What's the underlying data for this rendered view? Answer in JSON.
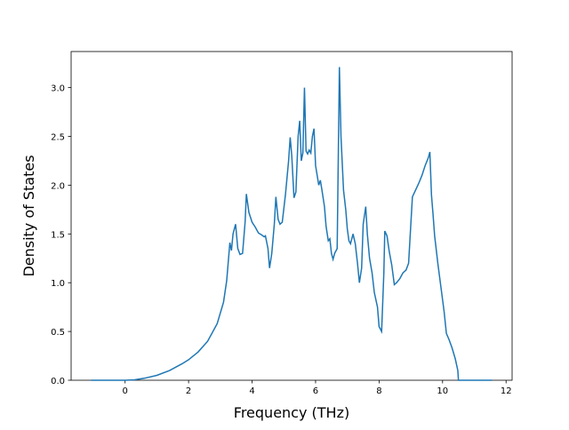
{
  "chart_data": {
    "type": "line",
    "xlabel": "Frequency (THz)",
    "ylabel": "Density of States",
    "x": [
      -1.07,
      -0.5,
      0,
      0.3,
      0.6,
      1.0,
      1.4,
      1.8,
      2.0,
      2.3,
      2.6,
      2.9,
      3.1,
      3.2,
      3.3,
      3.35,
      3.4,
      3.48,
      3.55,
      3.62,
      3.7,
      3.78,
      3.82,
      3.9,
      4.0,
      4.1,
      4.2,
      4.3,
      4.38,
      4.42,
      4.5,
      4.55,
      4.62,
      4.7,
      4.75,
      4.82,
      4.88,
      4.95,
      5.05,
      5.15,
      5.2,
      5.25,
      5.32,
      5.38,
      5.45,
      5.5,
      5.55,
      5.6,
      5.65,
      5.7,
      5.75,
      5.8,
      5.85,
      5.9,
      5.95,
      6.0,
      6.1,
      6.15,
      6.2,
      6.28,
      6.33,
      6.4,
      6.45,
      6.5,
      6.55,
      6.6,
      6.68,
      6.75,
      6.8,
      6.88,
      6.95,
      7.0,
      7.05,
      7.1,
      7.18,
      7.25,
      7.32,
      7.38,
      7.45,
      7.5,
      7.58,
      7.63,
      7.7,
      7.78,
      7.85,
      7.95,
      8.0,
      8.08,
      8.15,
      8.18,
      8.25,
      8.32,
      8.4,
      8.48,
      8.55,
      8.65,
      8.75,
      8.85,
      8.93,
      9.0,
      9.05,
      9.15,
      9.25,
      9.35,
      9.45,
      9.55,
      9.6,
      9.65,
      9.7,
      9.75,
      9.85,
      9.95,
      10.05,
      10.12,
      10.2,
      10.3,
      10.4,
      10.48,
      10.5,
      11.0,
      11.56
    ],
    "series": [
      {
        "name": "DOS",
        "color": "#1f77b4",
        "values": [
          0,
          0,
          0,
          0.005,
          0.02,
          0.05,
          0.1,
          0.17,
          0.21,
          0.29,
          0.4,
          0.58,
          0.8,
          1.02,
          1.41,
          1.33,
          1.5,
          1.6,
          1.35,
          1.29,
          1.3,
          1.62,
          1.91,
          1.72,
          1.62,
          1.57,
          1.51,
          1.49,
          1.47,
          1.48,
          1.35,
          1.15,
          1.3,
          1.6,
          1.88,
          1.65,
          1.6,
          1.62,
          1.9,
          2.25,
          2.49,
          2.3,
          1.87,
          1.93,
          2.5,
          2.66,
          2.25,
          2.33,
          3.0,
          2.35,
          2.32,
          2.36,
          2.33,
          2.5,
          2.58,
          2.2,
          2.0,
          2.05,
          1.95,
          1.78,
          1.58,
          1.43,
          1.45,
          1.3,
          1.24,
          1.3,
          1.35,
          3.21,
          2.5,
          1.95,
          1.75,
          1.55,
          1.43,
          1.4,
          1.5,
          1.4,
          1.2,
          1.0,
          1.15,
          1.6,
          1.78,
          1.5,
          1.25,
          1.1,
          0.9,
          0.75,
          0.55,
          0.5,
          1.1,
          1.53,
          1.48,
          1.32,
          1.18,
          0.98,
          1.0,
          1.04,
          1.1,
          1.13,
          1.2,
          1.6,
          1.88,
          1.95,
          2.02,
          2.1,
          2.2,
          2.28,
          2.34,
          1.9,
          1.7,
          1.48,
          1.2,
          0.95,
          0.7,
          0.48,
          0.42,
          0.33,
          0.22,
          0.1,
          0,
          0,
          0
        ]
      }
    ],
    "xlim": [
      -1.7,
      12.19
    ],
    "ylim": [
      0,
      3.37
    ],
    "xticks": [
      0,
      2,
      4,
      6,
      8,
      10,
      12
    ],
    "yticks": [
      {
        "value": 0,
        "label": "0.0"
      },
      0.5,
      {
        "value": 1,
        "label": "1.0"
      },
      1.5,
      {
        "value": 2,
        "label": "2.0"
      },
      2.5,
      {
        "value": 3,
        "label": "3.0"
      }
    ]
  }
}
